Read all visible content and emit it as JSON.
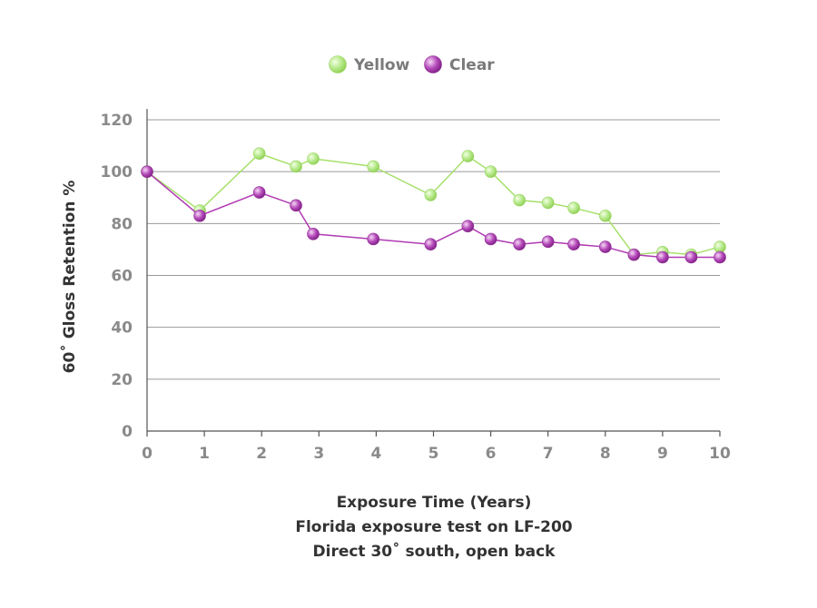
{
  "chart_data": {
    "type": "line",
    "xlabel": "Exposure Time (Years)",
    "ylabel": "60˚ Gloss Retention %",
    "captions": [
      "Florida exposure test on LF-200",
      "Direct 30˚ south, open back"
    ],
    "xlim": [
      0,
      10
    ],
    "ylim": [
      0,
      120
    ],
    "x_ticks": [
      "0",
      "1",
      "2",
      "3",
      "4",
      "5",
      "6",
      "7",
      "8",
      "9",
      "10"
    ],
    "y_ticks": [
      "0",
      "20",
      "40",
      "60",
      "80",
      "100",
      "120"
    ],
    "grid": "horizontal",
    "legend": "top-center",
    "series": [
      {
        "name": "Yellow",
        "color": "#a6e06a",
        "x": [
          0,
          0.92,
          1.96,
          2.6,
          2.9,
          3.95,
          4.95,
          5.6,
          6.0,
          6.5,
          7.0,
          7.45,
          8.0,
          8.5,
          9.0,
          9.5,
          10.0
        ],
        "y": [
          100,
          85,
          107,
          102,
          105,
          102,
          91,
          106,
          100,
          89,
          88,
          86,
          83,
          68,
          69,
          68,
          71
        ]
      },
      {
        "name": "Clear",
        "color": "#b03ab4",
        "x": [
          0,
          0.92,
          1.96,
          2.6,
          2.9,
          3.95,
          4.95,
          5.6,
          6.0,
          6.5,
          7.0,
          7.45,
          8.0,
          8.5,
          9.0,
          9.5,
          10.0
        ],
        "y": [
          100,
          83,
          92,
          87,
          76,
          74,
          72,
          79,
          74,
          72,
          73,
          72,
          71,
          68,
          67,
          67,
          67
        ]
      }
    ]
  }
}
